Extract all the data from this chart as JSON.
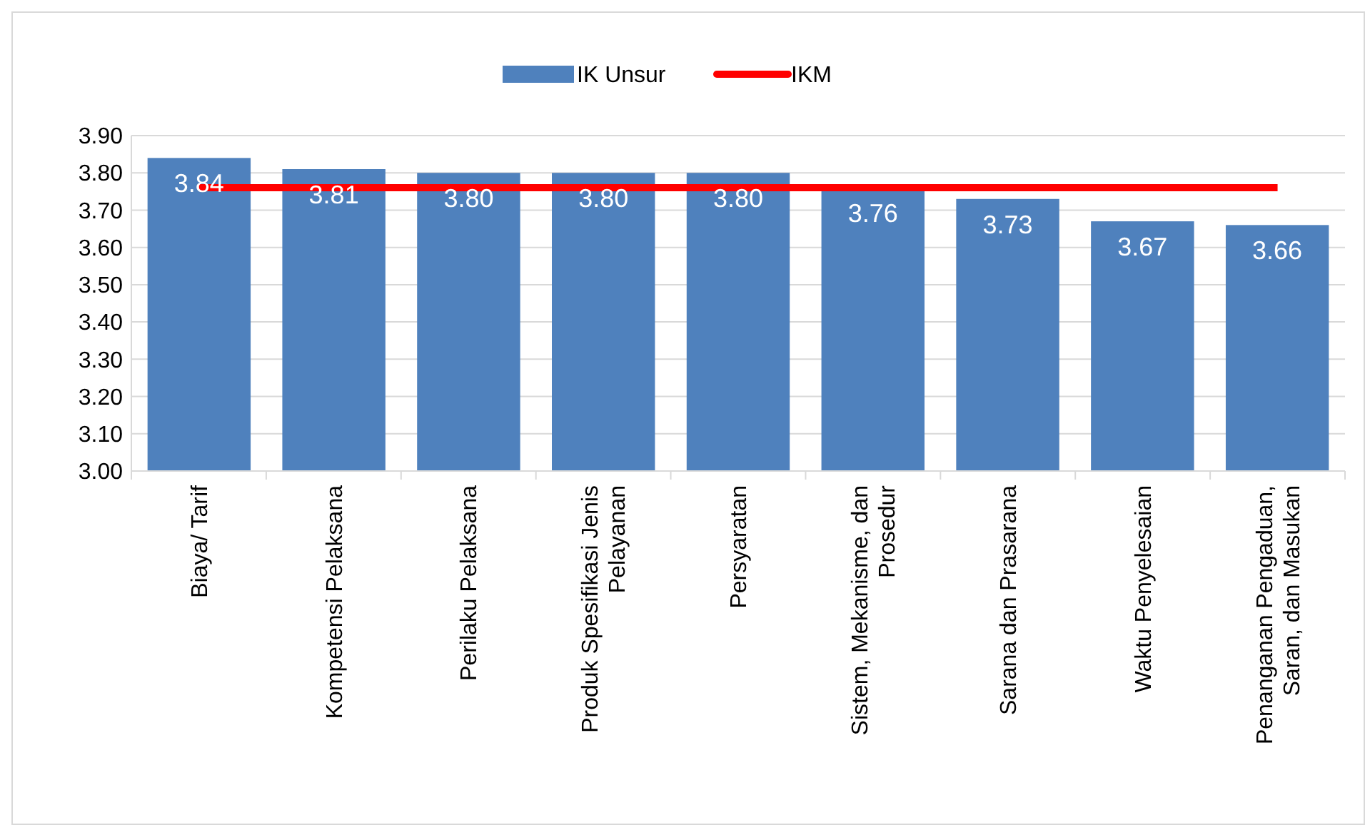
{
  "chart_data": {
    "type": "bar",
    "categories": [
      "Biaya/ Tarif",
      "Kompetensi Pelaksana",
      "Perilaku Pelaksana",
      "Produk Spesifikasi Jenis Pelayanan",
      "Persyaratan",
      "Sistem, Mekanisme, dan Prosedur",
      "Sarana dan Prasarana",
      "Waktu Penyelesaian",
      "Penanganan Pengaduan, Saran, dan Masukan"
    ],
    "series": [
      {
        "name": "IK Unsur",
        "color": "#4f81bd",
        "values": [
          3.84,
          3.81,
          3.8,
          3.8,
          3.8,
          3.76,
          3.73,
          3.67,
          3.66
        ],
        "value_labels": [
          "3.84",
          "3.81",
          "3.80",
          "3.80",
          "3.80",
          "3.76",
          "3.73",
          "3.67",
          "3.66"
        ]
      },
      {
        "name": "IKM",
        "type": "line",
        "color": "#ff0000",
        "values": [
          3.76,
          3.76,
          3.76,
          3.76,
          3.76,
          3.76,
          3.76,
          3.76,
          3.76
        ]
      }
    ],
    "ylim": [
      3.0,
      3.9
    ],
    "yticks": [
      {
        "value": 3.0,
        "label": "3.00"
      },
      {
        "value": 3.1,
        "label": "3.10"
      },
      {
        "value": 3.2,
        "label": "3.20"
      },
      {
        "value": 3.3,
        "label": "3.30"
      },
      {
        "value": 3.4,
        "label": "3.40"
      },
      {
        "value": 3.5,
        "label": "3.50"
      },
      {
        "value": 3.6,
        "label": "3.60"
      },
      {
        "value": 3.7,
        "label": "3.70"
      },
      {
        "value": 3.8,
        "label": "3.80"
      },
      {
        "value": 3.9,
        "label": "3.90"
      }
    ],
    "grid": "y",
    "legend": "top"
  }
}
